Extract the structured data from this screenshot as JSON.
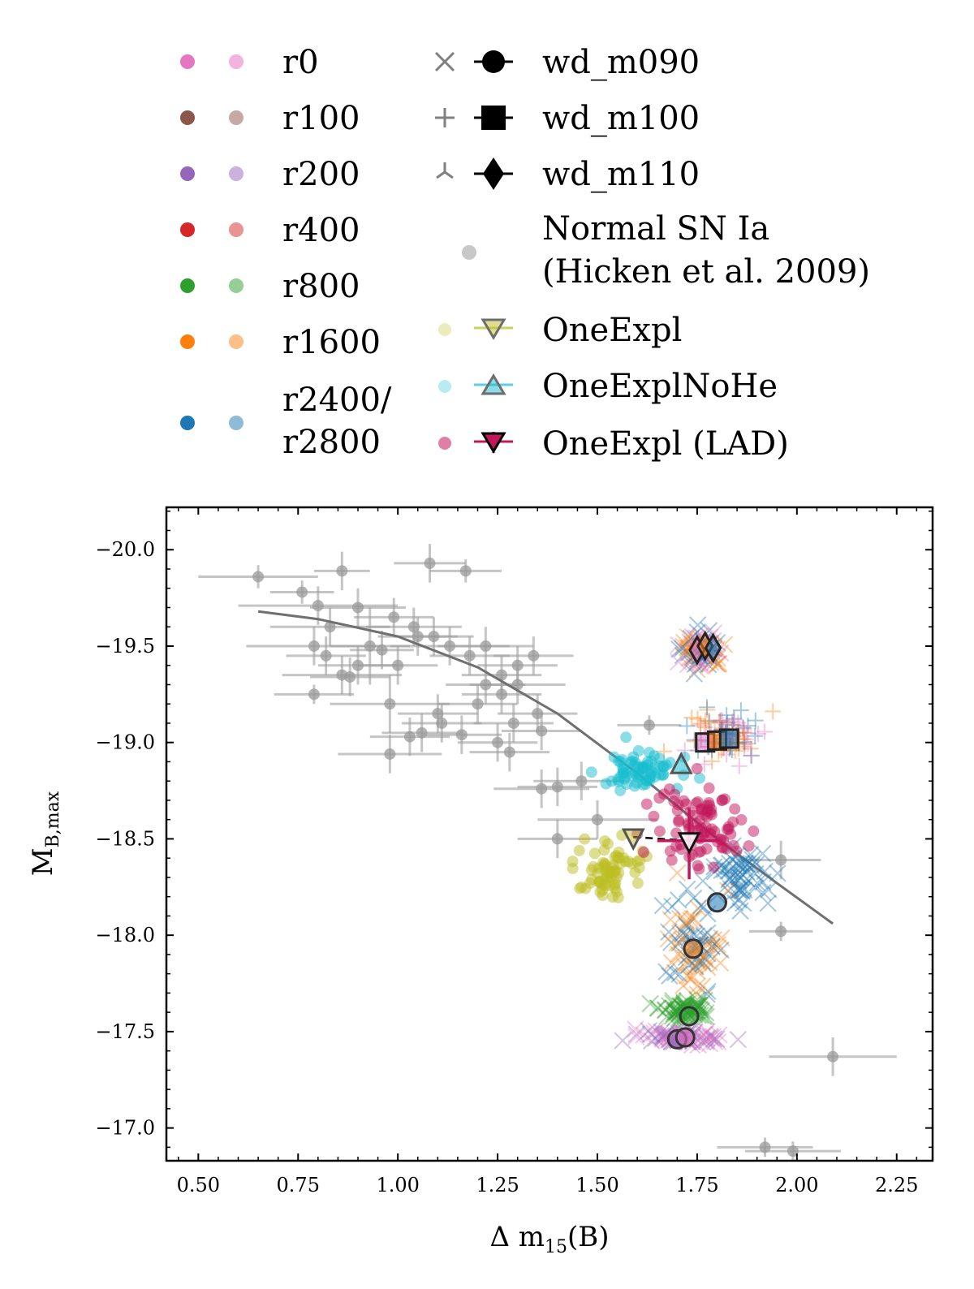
{
  "legend": {
    "models": [
      {
        "label": "r0",
        "color": "#e377c2",
        "color_light": "#f2b3df"
      },
      {
        "label": "r100",
        "color": "#8c564b",
        "color_light": "#c5aaa4"
      },
      {
        "label": "r200",
        "color": "#9467bd",
        "color_light": "#c9b2de"
      },
      {
        "label": "r400",
        "color": "#d62728",
        "color_light": "#ea9393"
      },
      {
        "label": "r800",
        "color": "#2ca02c",
        "color_light": "#95cf95"
      },
      {
        "label": "r1600",
        "color": "#ff7f0e",
        "color_light": "#ffbf86"
      },
      {
        "label_line1": "r2400/",
        "label_line2": "r2800",
        "color": "#1f77b4",
        "color_light": "#8fbbd9"
      }
    ],
    "wd": [
      {
        "label": "wd_m090",
        "marker": "circle",
        "small_marker": "x"
      },
      {
        "label": "wd_m100",
        "marker": "square",
        "small_marker": "plus"
      },
      {
        "label": "wd_m110",
        "marker": "diamond",
        "small_marker": "tri"
      }
    ],
    "normal": {
      "line1": "Normal SN Ia",
      "line2": "(Hicken et al. 2009)",
      "color": "#b0b0b0"
    },
    "one_expl": [
      {
        "label": "OneExpl",
        "color": "#bcbd22",
        "marker": "triangle-down"
      },
      {
        "label": "OneExplNoHe",
        "color": "#17becf",
        "marker": "triangle-up"
      },
      {
        "label": "OneExpl (LAD)",
        "color": "#c2185b",
        "marker": "triangle-down-filled"
      }
    ]
  },
  "chart_data": {
    "type": "scatter",
    "xlabel_main": "Δ m",
    "xlabel_sub": "15",
    "xlabel_tail": "(B)",
    "ylabel_main": "M",
    "ylabel_sub": "B,max",
    "xlim": [
      0.42,
      2.34
    ],
    "ylim": [
      -16.83,
      -20.22
    ],
    "xticks": [
      0.5,
      0.75,
      1.0,
      1.25,
      1.5,
      1.75,
      2.0,
      2.25
    ],
    "xtick_labels": [
      "0.50",
      "0.75",
      "1.00",
      "1.25",
      "1.50",
      "1.75",
      "2.00",
      "2.25"
    ],
    "yticks": [
      -20.0,
      -19.5,
      -19.0,
      -18.5,
      -18.0,
      -17.5,
      -17.0
    ],
    "ytick_labels": [
      "−20.0",
      "−19.5",
      "−19.0",
      "−18.5",
      "−18.0",
      "−17.5",
      "−17.0"
    ],
    "phillips_fit": [
      [
        0.65,
        -19.68
      ],
      [
        0.8,
        -19.64
      ],
      [
        1.0,
        -19.55
      ],
      [
        1.2,
        -19.39
      ],
      [
        1.4,
        -19.15
      ],
      [
        1.6,
        -18.84
      ],
      [
        1.8,
        -18.5
      ],
      [
        1.95,
        -18.27
      ],
      [
        2.09,
        -18.06
      ]
    ],
    "observed": [
      [
        0.65,
        -19.86,
        0.15,
        0.06
      ],
      [
        0.76,
        -19.78,
        0.08,
        0.06
      ],
      [
        0.86,
        -19.89,
        0.07,
        0.1
      ],
      [
        1.08,
        -19.93,
        0.09,
        0.1
      ],
      [
        1.17,
        -19.89,
        0.09,
        0.06
      ],
      [
        0.8,
        -19.71,
        0.2,
        0.1
      ],
      [
        0.83,
        -19.6,
        0.15,
        0.1
      ],
      [
        0.9,
        -19.7,
        0.12,
        0.1
      ],
      [
        0.99,
        -19.65,
        0.1,
        0.1
      ],
      [
        1.04,
        -19.6,
        0.12,
        0.1
      ],
      [
        0.79,
        -19.5,
        0.17,
        0.1
      ],
      [
        0.82,
        -19.45,
        0.1,
        0.1
      ],
      [
        0.86,
        -19.35,
        0.15,
        0.1
      ],
      [
        0.9,
        -19.4,
        0.1,
        0.1
      ],
      [
        0.93,
        -19.5,
        0.1,
        0.2
      ],
      [
        0.96,
        -19.48,
        0.08,
        0.1
      ],
      [
        1.0,
        -19.4,
        0.1,
        0.1
      ],
      [
        1.05,
        -19.55,
        0.1,
        0.1
      ],
      [
        1.09,
        -19.55,
        0.1,
        0.1
      ],
      [
        1.13,
        -19.5,
        0.15,
        0.1
      ],
      [
        1.18,
        -19.45,
        0.1,
        0.1
      ],
      [
        1.22,
        -19.5,
        0.12,
        0.1
      ],
      [
        1.26,
        -19.35,
        0.1,
        0.1
      ],
      [
        1.3,
        -19.4,
        0.1,
        0.1
      ],
      [
        1.34,
        -19.45,
        0.1,
        0.1
      ],
      [
        1.3,
        -19.3,
        0.12,
        0.1
      ],
      [
        1.26,
        -19.25,
        0.1,
        0.1
      ],
      [
        1.22,
        -19.3,
        0.1,
        0.1
      ],
      [
        1.1,
        -19.15,
        0.1,
        0.1
      ],
      [
        0.79,
        -19.25,
        0.1,
        0.05
      ],
      [
        0.88,
        -19.34,
        0.1,
        0.1
      ],
      [
        0.98,
        -19.2,
        0.15,
        0.15
      ],
      [
        1.11,
        -19.1,
        0.1,
        0.1
      ],
      [
        1.06,
        -19.05,
        0.1,
        0.1
      ],
      [
        1.03,
        -19.03,
        0.1,
        0.1
      ],
      [
        1.16,
        -19.04,
        0.1,
        0.1
      ],
      [
        0.98,
        -18.94,
        0.13,
        0.1
      ],
      [
        1.2,
        -19.2,
        0.1,
        0.1
      ],
      [
        1.29,
        -19.1,
        0.1,
        0.1
      ],
      [
        1.35,
        -19.15,
        0.1,
        0.1
      ],
      [
        1.36,
        -19.06,
        0.1,
        0.1
      ],
      [
        1.25,
        -19.0,
        0.1,
        0.1
      ],
      [
        1.28,
        -18.95,
        0.1,
        0.1
      ],
      [
        1.36,
        -18.76,
        0.12,
        0.1
      ],
      [
        1.4,
        -18.77,
        0.1,
        0.1
      ],
      [
        1.46,
        -18.8,
        0.12,
        0.1
      ],
      [
        1.4,
        -18.5,
        0.1,
        0.1
      ],
      [
        1.5,
        -18.6,
        0.15,
        0.1
      ],
      [
        1.63,
        -19.09,
        0.08,
        0.05
      ],
      [
        1.96,
        -18.39,
        0.1,
        0.1
      ],
      [
        1.96,
        -18.02,
        0.08,
        0.05
      ],
      [
        2.09,
        -17.37,
        0.16,
        0.1
      ],
      [
        1.92,
        -16.9,
        0.12,
        0.05
      ],
      [
        1.99,
        -16.88,
        0.12,
        0.05
      ]
    ],
    "groups": [
      {
        "name": "wd_m110 cluster",
        "marker": "x",
        "center": [
          1.76,
          -19.48
        ],
        "spread": [
          0.05,
          0.09
        ],
        "count": 90,
        "colors": [
          "#1f77b4",
          "#ff7f0e",
          "#e377c2"
        ]
      },
      {
        "name": "wd_m100 cluster",
        "marker": "plus",
        "center": [
          1.82,
          -19.03
        ],
        "spread": [
          0.08,
          0.12
        ],
        "count": 110,
        "colors": [
          "#1f77b4",
          "#ff7f0e",
          "#e377c2"
        ]
      },
      {
        "name": "wd_m090 r2400",
        "marker": "x",
        "center": [
          1.86,
          -18.3
        ],
        "spread": [
          0.06,
          0.14
        ],
        "count": 60,
        "colors": [
          "#1f77b4"
        ]
      },
      {
        "name": "wd_m090 r1600",
        "marker": "x",
        "center": [
          1.74,
          -17.95
        ],
        "spread": [
          0.07,
          0.2
        ],
        "count": 90,
        "colors": [
          "#ff7f0e",
          "#1f77b4"
        ]
      },
      {
        "name": "wd_m090 r800",
        "marker": "x",
        "center": [
          1.72,
          -17.62
        ],
        "spread": [
          0.06,
          0.05
        ],
        "count": 70,
        "colors": [
          "#2ca02c"
        ]
      },
      {
        "name": "wd_m090 r0",
        "marker": "x",
        "center": [
          1.72,
          -17.47
        ],
        "spread": [
          0.1,
          0.03
        ],
        "count": 90,
        "colors": [
          "#e377c2",
          "#9467bd"
        ]
      },
      {
        "name": "OneExplNoHe",
        "marker": "dot",
        "center": [
          1.6,
          -18.85
        ],
        "spread": [
          0.09,
          0.08
        ],
        "count": 70,
        "colors": [
          "#17becf"
        ]
      },
      {
        "name": "OneExpl",
        "marker": "dot",
        "center": [
          1.53,
          -18.35
        ],
        "spread": [
          0.08,
          0.17
        ],
        "count": 70,
        "colors": [
          "#bcbd22"
        ]
      },
      {
        "name": "OneExpl LAD",
        "marker": "dot",
        "center": [
          1.76,
          -18.55
        ],
        "spread": [
          0.1,
          0.2
        ],
        "count": 90,
        "colors": [
          "#c2185b"
        ]
      }
    ],
    "mean_markers": [
      {
        "type": "diamond",
        "x": 1.75,
        "y": -19.48,
        "face": "#e377c2"
      },
      {
        "type": "diamond",
        "x": 1.77,
        "y": -19.5,
        "face": "#ff7f0e"
      },
      {
        "type": "diamond",
        "x": 1.79,
        "y": -19.49,
        "face": "#1f77b4"
      },
      {
        "type": "square",
        "x": 1.77,
        "y": -19.0,
        "face": "#e377c2"
      },
      {
        "type": "square",
        "x": 1.8,
        "y": -19.01,
        "face": "#ff7f0e"
      },
      {
        "type": "square",
        "x": 1.83,
        "y": -19.02,
        "face": "#1f77b4"
      },
      {
        "type": "circle",
        "x": 1.8,
        "y": -18.17,
        "face": "#1f77b4"
      },
      {
        "type": "circle",
        "x": 1.74,
        "y": -17.93,
        "face": "#ff7f0e"
      },
      {
        "type": "circle",
        "x": 1.73,
        "y": -17.58,
        "face": "#2ca02c"
      },
      {
        "type": "circle",
        "x": 1.7,
        "y": -17.46,
        "face": "#9467bd"
      },
      {
        "type": "circle",
        "x": 1.72,
        "y": -17.47,
        "face": "#e377c2"
      },
      {
        "type": "triangle-up",
        "x": 1.71,
        "y": -18.88,
        "face": "#17becf"
      },
      {
        "type": "triangle-down",
        "x": 1.59,
        "y": -18.51,
        "face": "#bcbd22"
      },
      {
        "type": "triangle-down-lad",
        "x": 1.73,
        "y": -18.49,
        "face": "#ffffff"
      }
    ],
    "lad_errorbar": {
      "x": 1.73,
      "y": -18.49,
      "xerr": 0.08,
      "yerr_low": 0.2,
      "yerr_high": 0.17
    },
    "one_expl_link": {
      "x1": 1.59,
      "y1": -18.51,
      "x2": 1.73,
      "y2": -18.49
    }
  }
}
